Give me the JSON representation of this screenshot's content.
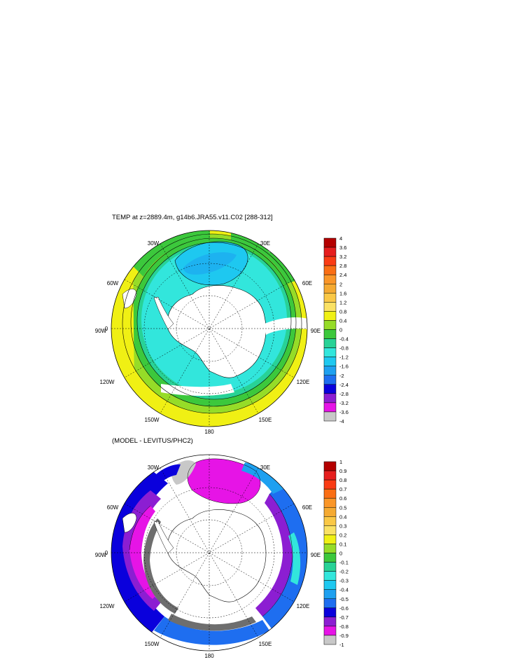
{
  "panels": [
    {
      "title": "TEMP at z=2889.4m, g14b6.JRA55.v11.C02 [288-312]",
      "longitude_labels": [
        "0",
        "30E",
        "60E",
        "90E",
        "120E",
        "150E",
        "180",
        "150W",
        "120W",
        "90W",
        "60W",
        "30W"
      ],
      "colorbar": {
        "labels": [
          "4",
          "3.6",
          "3.2",
          "2.8",
          "2.4",
          "2",
          "1.6",
          "1.2",
          "0.8",
          "0.4",
          "0",
          "-0.4",
          "-0.8",
          "-1.2",
          "-1.6",
          "-2",
          "-2.4",
          "-2.8",
          "-3.2",
          "-3.6",
          "-4"
        ],
        "colors": [
          "#b40000",
          "#e61e1e",
          "#fa3c14",
          "#fa6e14",
          "#fa9628",
          "#f5aa32",
          "#fac846",
          "#fae164",
          "#f0f014",
          "#96dc28",
          "#3cc83c",
          "#28d296",
          "#32e6dc",
          "#1ec8f0",
          "#1ea0f0",
          "#1e6ef0",
          "#0a00dc",
          "#8c1ed2",
          "#e614e6",
          "#c8c8c8",
          "#6e6e6e"
        ]
      }
    },
    {
      "title": "(MODEL - LEVITUS/PHC2)",
      "longitude_labels": [
        "0",
        "30E",
        "60E",
        "90E",
        "120E",
        "150E",
        "180",
        "150W",
        "120W",
        "90W",
        "60W",
        "30W"
      ],
      "colorbar": {
        "labels": [
          "1",
          "0.9",
          "0.8",
          "0.7",
          "0.6",
          "0.5",
          "0.4",
          "0.3",
          "0.2",
          "0.1",
          "0",
          "-0.1",
          "-0.2",
          "-0.3",
          "-0.4",
          "-0.5",
          "-0.6",
          "-0.7",
          "-0.8",
          "-0.9",
          "-1"
        ],
        "colors": [
          "#b40000",
          "#e61e1e",
          "#fa3c14",
          "#fa6e14",
          "#fa9628",
          "#f5aa32",
          "#fac846",
          "#fae164",
          "#f0f014",
          "#96dc28",
          "#3cc83c",
          "#28d296",
          "#32e6dc",
          "#1ec8f0",
          "#1ea0f0",
          "#1e6ef0",
          "#0a00dc",
          "#8c1ed2",
          "#e614e6",
          "#c8c8c8",
          "#6e6e6e"
        ]
      }
    }
  ]
}
